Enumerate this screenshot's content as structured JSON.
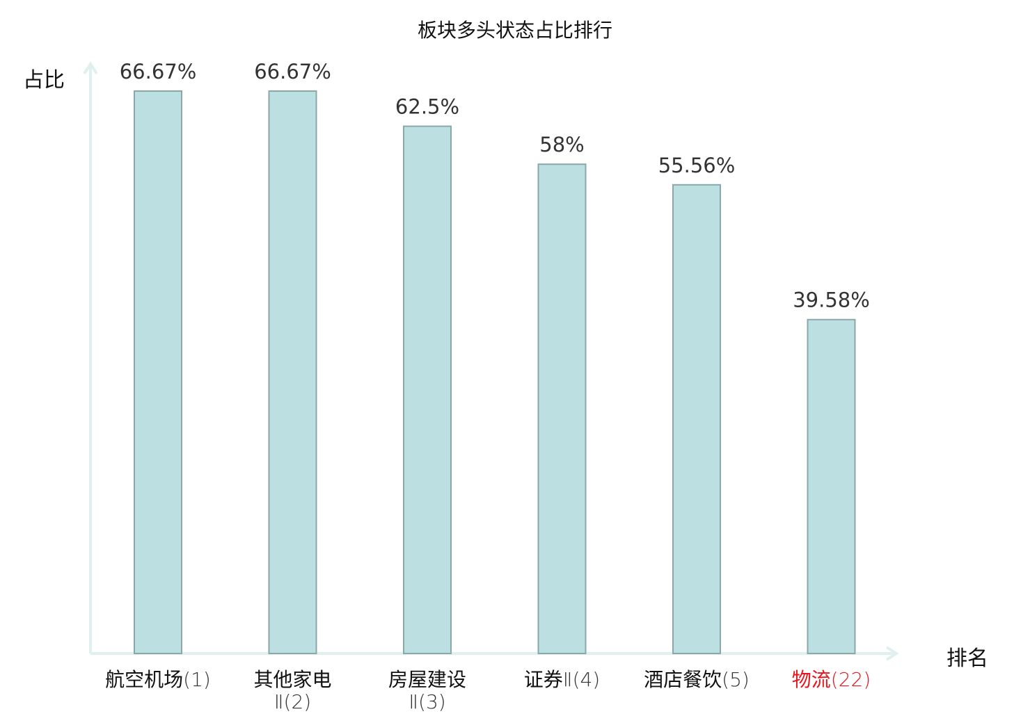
{
  "chart_data": {
    "type": "bar",
    "title": "板块多头状态占比排行",
    "ylabel": "占比",
    "xlabel": "排名",
    "ylim": [
      0,
      70
    ],
    "grid": false,
    "categories": [
      {
        "name": "航空机场",
        "rank": "(1)",
        "highlight": false
      },
      {
        "name": "其他家电",
        "rank": "Ⅱ(2)",
        "highlight": false
      },
      {
        "name": "房屋建设",
        "rank": "Ⅱ(3)",
        "highlight": false
      },
      {
        "name": "证券",
        "rank": "Ⅱ(4)",
        "highlight": false
      },
      {
        "name": "酒店餐饮",
        "rank": "(5)",
        "highlight": false
      },
      {
        "name": "物流",
        "rank": "(22)",
        "highlight": true
      }
    ],
    "values": [
      66.67,
      66.67,
      62.5,
      58,
      55.56,
      39.58
    ],
    "value_labels": [
      "66.67%",
      "66.67%",
      "62.5%",
      "58%",
      "55.56%",
      "39.58%"
    ],
    "colors": {
      "bar_fill": "#bce0e2",
      "bar_stroke": "#8aa8aa",
      "axis": "#dff0ee",
      "highlight": "#e8141c",
      "label": "#333333"
    }
  }
}
